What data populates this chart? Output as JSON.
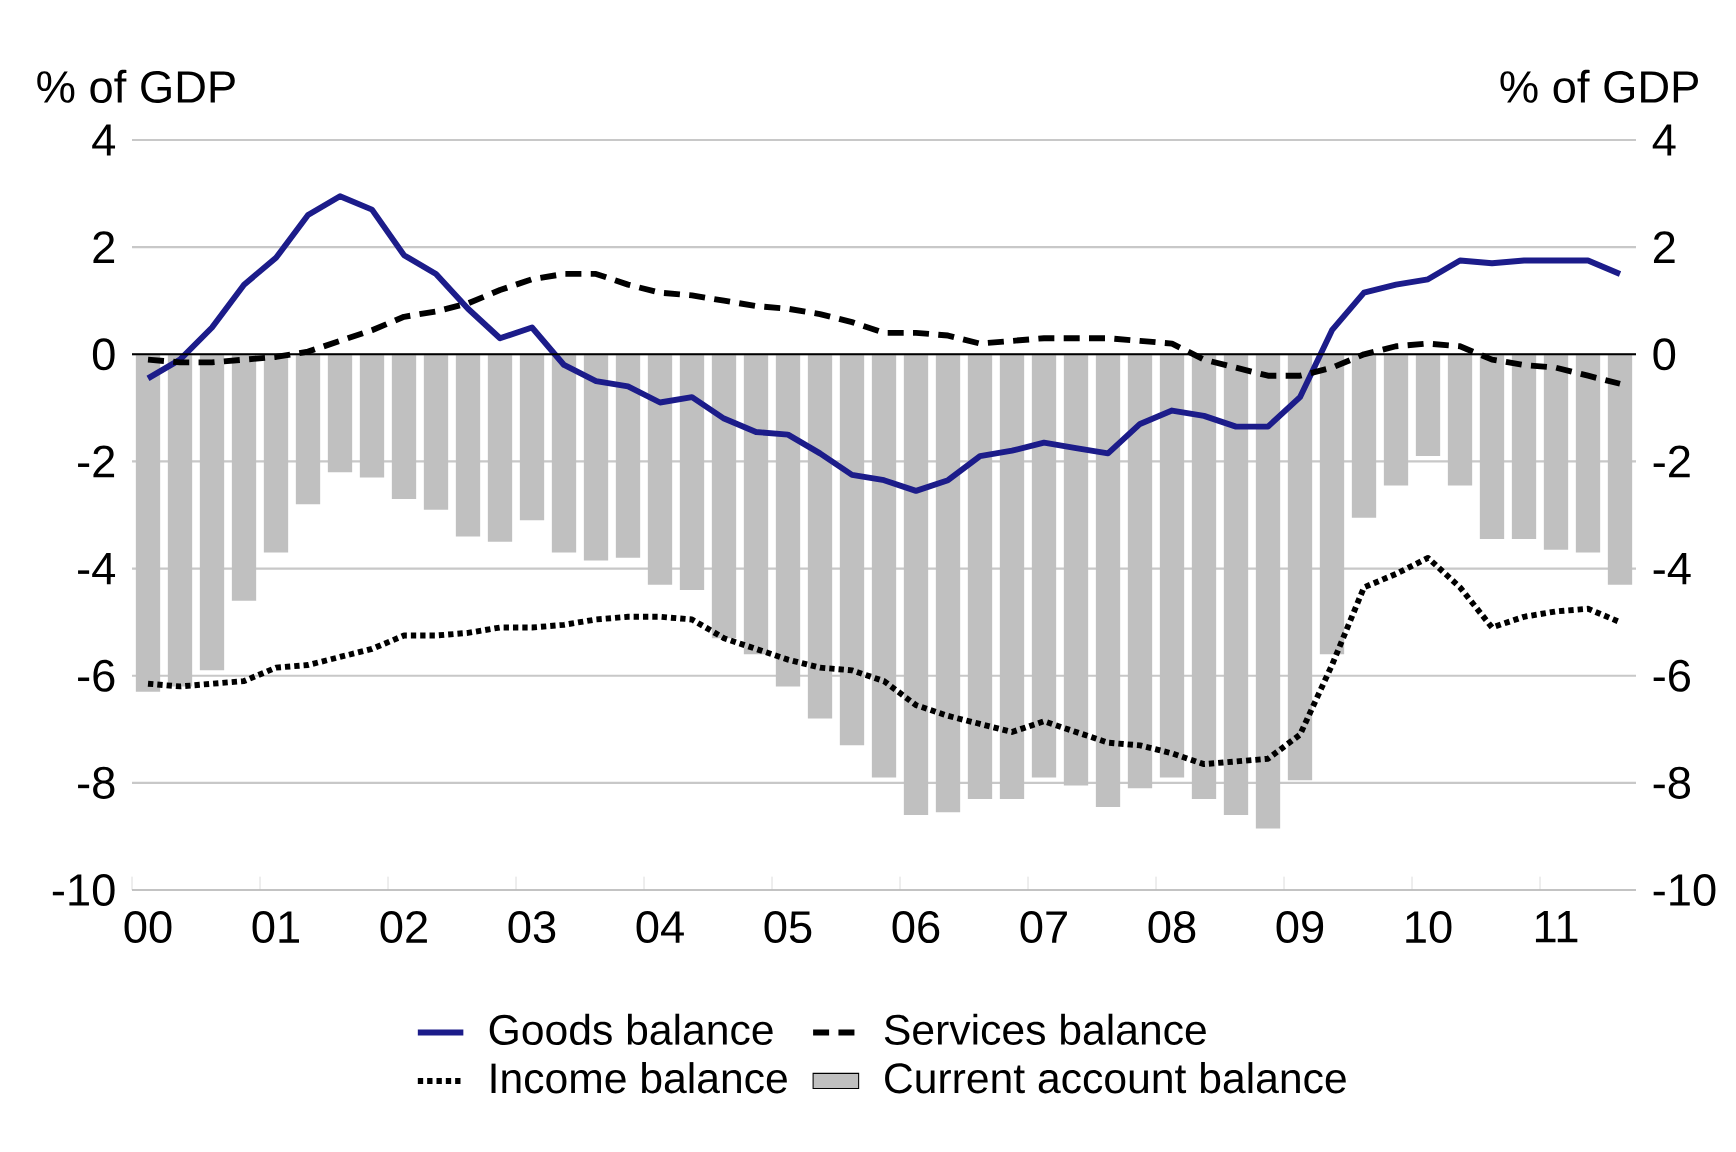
{
  "chart_data": {
    "type": "bar",
    "ylabel": "% of GDP",
    "y2label": "% of GDP",
    "categories": [
      "00",
      null,
      null,
      null,
      "01",
      null,
      null,
      null,
      "02",
      null,
      null,
      null,
      "03",
      null,
      null,
      null,
      "04",
      null,
      null,
      null,
      "05",
      null,
      null,
      null,
      "06",
      null,
      null,
      null,
      "07",
      null,
      null,
      null,
      "08",
      null,
      null,
      null,
      "09",
      null,
      null,
      null,
      "10",
      null,
      null,
      null,
      "11",
      null,
      null
    ],
    "series": [
      {
        "name": "Goods balance",
        "type": "line",
        "line_style": "solid",
        "color": "#1c1c8a",
        "values": [
          -0.45,
          -0.1,
          0.5,
          1.3,
          1.8,
          2.6,
          2.95,
          2.7,
          1.85,
          1.5,
          0.85,
          0.3,
          0.5,
          -0.2,
          -0.5,
          -0.6,
          -0.9,
          -0.8,
          -1.2,
          -1.45,
          -1.5,
          -1.85,
          -2.25,
          -2.35,
          -2.55,
          -2.35,
          -1.9,
          -1.8,
          -1.65,
          -1.75,
          -1.85,
          -1.3,
          -1.05,
          -1.15,
          -1.35,
          -1.35,
          -0.8,
          0.45,
          1.15,
          1.3,
          1.4,
          1.75,
          1.7,
          1.75,
          1.75,
          1.75,
          1.5
        ]
      },
      {
        "name": "Services balance",
        "type": "line",
        "line_style": "dashed",
        "color": "#000000",
        "values": [
          -0.1,
          -0.15,
          -0.15,
          -0.1,
          -0.05,
          0.05,
          0.25,
          0.45,
          0.7,
          0.8,
          0.95,
          1.2,
          1.4,
          1.5,
          1.5,
          1.3,
          1.15,
          1.1,
          1.0,
          0.9,
          0.85,
          0.75,
          0.6,
          0.4,
          0.4,
          0.35,
          0.2,
          0.25,
          0.3,
          0.3,
          0.3,
          0.25,
          0.2,
          -0.1,
          -0.25,
          -0.4,
          -0.4,
          -0.25,
          0.0,
          0.15,
          0.2,
          0.15,
          -0.1,
          -0.2,
          -0.25,
          -0.4,
          -0.55
        ]
      },
      {
        "name": "Income balance",
        "type": "line",
        "line_style": "dotted",
        "color": "#000000",
        "values": [
          -6.15,
          -6.2,
          -6.15,
          -6.1,
          -5.85,
          -5.8,
          -5.65,
          -5.5,
          -5.25,
          -5.25,
          -5.2,
          -5.1,
          -5.1,
          -5.05,
          -4.95,
          -4.9,
          -4.9,
          -4.95,
          -5.3,
          -5.5,
          -5.7,
          -5.85,
          -5.9,
          -6.1,
          -6.55,
          -6.75,
          -6.9,
          -7.05,
          -6.85,
          -7.05,
          -7.25,
          -7.3,
          -7.45,
          -7.65,
          -7.6,
          -7.55,
          -7.1,
          -5.8,
          -4.35,
          -4.1,
          -3.8,
          -4.35,
          -5.1,
          -4.9,
          -4.8,
          -4.75,
          -5.0
        ]
      },
      {
        "name": "Current account balance",
        "color": "#c0c0c0",
        "values": [
          -6.3,
          -6.2,
          -5.9,
          -4.6,
          -3.7,
          -2.8,
          -2.2,
          -2.3,
          -2.7,
          -2.9,
          -3.4,
          -3.5,
          -3.1,
          -3.7,
          -3.85,
          -3.8,
          -4.3,
          -4.4,
          -5.3,
          -5.6,
          -6.2,
          -6.8,
          -7.3,
          -7.9,
          -8.6,
          -8.55,
          -8.3,
          -8.3,
          -7.9,
          -8.05,
          -8.45,
          -8.1,
          -7.9,
          -8.3,
          -8.6,
          -8.85,
          -7.95,
          -5.6,
          -3.05,
          -2.45,
          -1.9,
          -2.45,
          -3.45,
          -3.45,
          -3.65,
          -3.7,
          -4.3
        ]
      }
    ],
    "ylim": [
      -10,
      4
    ],
    "yticks": [
      -10,
      -8,
      -6,
      -4,
      -2,
      0,
      2,
      4
    ],
    "y2lim": [
      -10,
      4
    ],
    "y2ticks": [
      -10,
      -8,
      -6,
      -4,
      -2,
      0,
      2,
      4
    ],
    "ref_lines": [
      {
        "axis": "y",
        "value": 0,
        "color": "#000000"
      }
    ],
    "grid": "y",
    "legend": "bottom"
  }
}
